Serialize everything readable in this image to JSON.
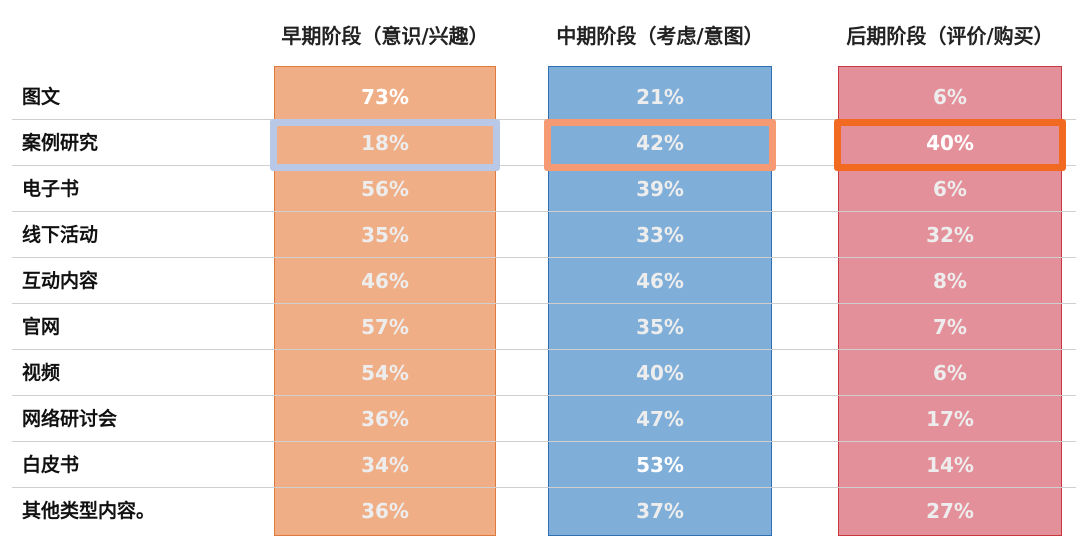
{
  "chart_data": {
    "type": "table",
    "columns": [
      {
        "label": "早期阶段（意识/兴趣）",
        "fill": "#f0ae86",
        "border": "#e07a3c"
      },
      {
        "label": "中期阶段（考虑/意图）",
        "fill": "#7faed8",
        "border": "#2f6fb4"
      },
      {
        "label": "后期阶段（评价/购买）",
        "fill": "#e4909a",
        "border": "#c8383f"
      }
    ],
    "rows": [
      {
        "label": "图文",
        "values": [
          "73%",
          "21%",
          "6%"
        ]
      },
      {
        "label": "案例研究",
        "values": [
          "18%",
          "42%",
          "40%"
        ]
      },
      {
        "label": "电子书",
        "values": [
          "56%",
          "39%",
          "6%"
        ]
      },
      {
        "label": "线下活动",
        "values": [
          "35%",
          "33%",
          "32%"
        ]
      },
      {
        "label": "互动内容",
        "values": [
          "46%",
          "46%",
          "8%"
        ]
      },
      {
        "label": "官网",
        "values": [
          "57%",
          "35%",
          "7%"
        ]
      },
      {
        "label": "视频",
        "values": [
          "54%",
          "40%",
          "6%"
        ]
      },
      {
        "label": "网络研讨会",
        "values": [
          "36%",
          "47%",
          "17%"
        ]
      },
      {
        "label": "白皮书",
        "values": [
          "34%",
          "53%",
          "14%"
        ]
      },
      {
        "label": "其他类型内容。",
        "values": [
          "36%",
          "37%",
          "27%"
        ]
      }
    ],
    "emphasized_cells": [
      {
        "row": 0,
        "col": 0
      },
      {
        "row": 8,
        "col": 1
      },
      {
        "row": 1,
        "col": 2
      }
    ],
    "highlight_boxes": [
      {
        "row": 1,
        "col": 0,
        "color": "#b8c8e6"
      },
      {
        "row": 1,
        "col": 1,
        "color": "#f59a72"
      },
      {
        "row": 1,
        "col": 2,
        "color": "#f26a21"
      }
    ]
  }
}
